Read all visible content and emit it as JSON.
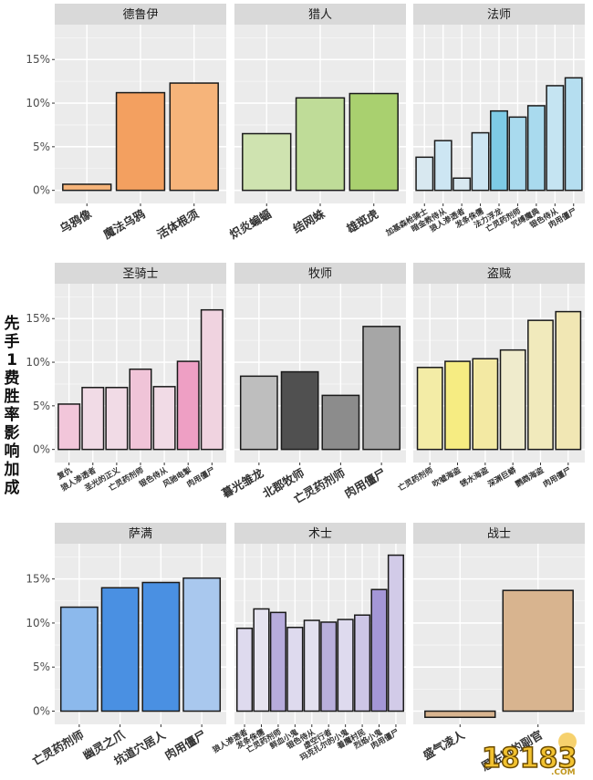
{
  "chart_data": [
    {
      "type": "bar",
      "title": "德鲁伊",
      "categories": [
        "乌鸦像",
        "魔法乌鸦",
        "活体根须"
      ],
      "values": [
        0.7,
        11.2,
        12.3
      ],
      "colors": [
        "#f6b47a",
        "#f3a060",
        "#f6b47a"
      ],
      "ylim": [
        -1.5,
        19
      ],
      "yticks": [
        0,
        5,
        10,
        15
      ],
      "ytick_labels": [
        "0%",
        "5%",
        "10%",
        "15%"
      ],
      "label_size": "large"
    },
    {
      "type": "bar",
      "title": "猎人",
      "categories": [
        "炽炎蝙蝠",
        "结网蛛",
        "雄斑虎"
      ],
      "values": [
        6.5,
        10.6,
        11.1
      ],
      "colors": [
        "#cfe3b0",
        "#bfdc98",
        "#a9d06f"
      ],
      "ylim": [
        -1.5,
        19
      ],
      "yticks": [
        0,
        5,
        10,
        15
      ],
      "label_size": "large"
    },
    {
      "type": "bar",
      "title": "法师",
      "categories": [
        "加基森枪骑士",
        "暗金教侍从",
        "狼人渗透者",
        "发条侏儒",
        "法力浮龙",
        "亡灵药剂师",
        "咒缚魔典",
        "银色侍从",
        "肉用僵尸"
      ],
      "values": [
        3.8,
        5.7,
        1.4,
        6.6,
        9.1,
        8.4,
        9.7,
        12.0,
        12.9
      ],
      "colors": [
        "#d8e8f0",
        "#cde6f3",
        "#d8e8f0",
        "#cde6f3",
        "#7ecbe6",
        "#a9daee",
        "#a9daee",
        "#c5e4f2",
        "#b5def0"
      ],
      "ylim": [
        -1.5,
        19
      ],
      "yticks": [
        0,
        5,
        10,
        15
      ],
      "label_size": "small"
    },
    {
      "type": "bar",
      "title": "圣骑士",
      "categories": [
        "复仇",
        "狼人渗透者",
        "圣光的正义",
        "亡灵药剂师",
        "银色侍从",
        "风驰电掣",
        "肉用僵尸"
      ],
      "values": [
        5.2,
        7.1,
        7.1,
        9.2,
        7.2,
        10.1,
        16.0
      ],
      "colors": [
        "#f2c6da",
        "#f1dbe6",
        "#f1dbe6",
        "#f0c4d8",
        "#f1dbe6",
        "#ee9fc4",
        "#f0d3e0"
      ],
      "ylim": [
        -1.5,
        19
      ],
      "yticks": [
        0,
        5,
        10,
        15
      ],
      "ytick_labels": [
        "0%",
        "5%",
        "10%",
        "15%"
      ],
      "label_size": "small"
    },
    {
      "type": "bar",
      "title": "牧师",
      "categories": [
        "暮光雏龙",
        "北郡牧师",
        "亡灵药剂师",
        "肉用僵尸"
      ],
      "values": [
        8.4,
        8.9,
        6.2,
        14.1
      ],
      "colors": [
        "#bebebe",
        "#505050",
        "#8c8c8c",
        "#a6a6a6"
      ],
      "ylim": [
        -1.5,
        19
      ],
      "yticks": [
        0,
        5,
        10,
        15
      ],
      "label_size": "large"
    },
    {
      "type": "bar",
      "title": "盗贼",
      "categories": [
        "亡灵药剂师",
        "吹嘘海盗",
        "锈水海盗",
        "深渊巨蟒",
        "鹦鹉海盗",
        "肉用僵尸"
      ],
      "values": [
        9.4,
        10.1,
        10.4,
        11.4,
        14.8,
        15.8
      ],
      "colors": [
        "#f3eca6",
        "#f6ec82",
        "#f3e9a3",
        "#efebcc",
        "#f1eabc",
        "#f1e7b4"
      ],
      "ylim": [
        -1.5,
        19
      ],
      "yticks": [
        0,
        5,
        10,
        15
      ],
      "label_size": "small"
    },
    {
      "type": "bar",
      "title": "萨满",
      "categories": [
        "亡灵药剂师",
        "幽灵之爪",
        "坑道穴居人",
        "肉用僵尸"
      ],
      "values": [
        11.8,
        14.0,
        14.6,
        15.1
      ],
      "colors": [
        "#8cb9ec",
        "#4a90e2",
        "#4a90e2",
        "#a9c8ee"
      ],
      "ylim": [
        -1.5,
        19
      ],
      "yticks": [
        0,
        5,
        10,
        15
      ],
      "ytick_labels": [
        "0%",
        "5%",
        "10%",
        "15%"
      ],
      "label_size": "large"
    },
    {
      "type": "bar",
      "title": "术士",
      "categories": [
        "狼人渗透者",
        "发条侏儒",
        "亡灵药剂师",
        "鲜血小鬼",
        "银色侍从",
        "虚空行者",
        "玛克扎尔的小鬼",
        "着魔村民",
        "烈焰小鬼",
        "肉用僵尸"
      ],
      "values": [
        9.4,
        11.6,
        11.2,
        9.5,
        10.3,
        10.1,
        10.4,
        10.9,
        13.8,
        17.7
      ],
      "colors": [
        "#dedaee",
        "#e6e4f0",
        "#b7acdc",
        "#dedaee",
        "#e3e1ef",
        "#b9afdc",
        "#dedaee",
        "#cdc6e6",
        "#a497d6",
        "#d2cbe8"
      ],
      "ylim": [
        -1.5,
        19
      ],
      "yticks": [
        0,
        5,
        10,
        15
      ],
      "label_size": "small"
    },
    {
      "type": "bar",
      "title": "战士",
      "categories": [
        "盛气凌人",
        "恩佐斯的副官"
      ],
      "values": [
        -0.7,
        13.7
      ],
      "colors": [
        "#d8b48f",
        "#d8b48f"
      ],
      "ylim": [
        -1.5,
        19
      ],
      "yticks": [
        0,
        5,
        10,
        15
      ],
      "label_size": "large"
    }
  ],
  "y_axis_title": [
    "先",
    "手",
    "1",
    "费",
    "胜",
    "率",
    "影",
    "响",
    "加",
    "成"
  ],
  "watermark": {
    "text": "18183",
    "sub": ".COM"
  }
}
